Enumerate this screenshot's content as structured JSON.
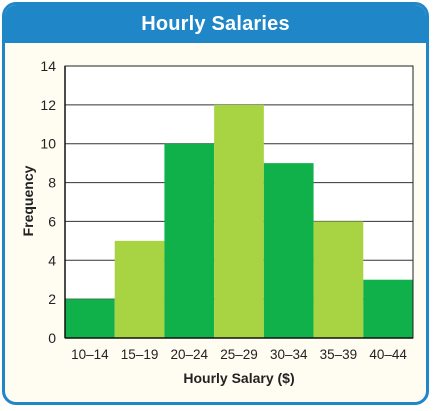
{
  "colors": {
    "frame": "#1f86c8",
    "background": "#fffdf2",
    "bar_dark": "#10b04a",
    "bar_light": "#a8d444",
    "grid": "#333333"
  },
  "chart_data": {
    "type": "bar",
    "title": "Hourly Salaries",
    "xlabel": "Hourly Salary ($)",
    "ylabel": "Frequency",
    "categories": [
      "10–14",
      "15–19",
      "20–24",
      "25–29",
      "30–34",
      "35–39",
      "40–44"
    ],
    "values": [
      2,
      5,
      10,
      12,
      9,
      6,
      3
    ],
    "ylim": [
      0,
      14
    ],
    "yticks": [
      0,
      2,
      4,
      6,
      8,
      10,
      12,
      14
    ],
    "grid": true,
    "legend": "none"
  }
}
